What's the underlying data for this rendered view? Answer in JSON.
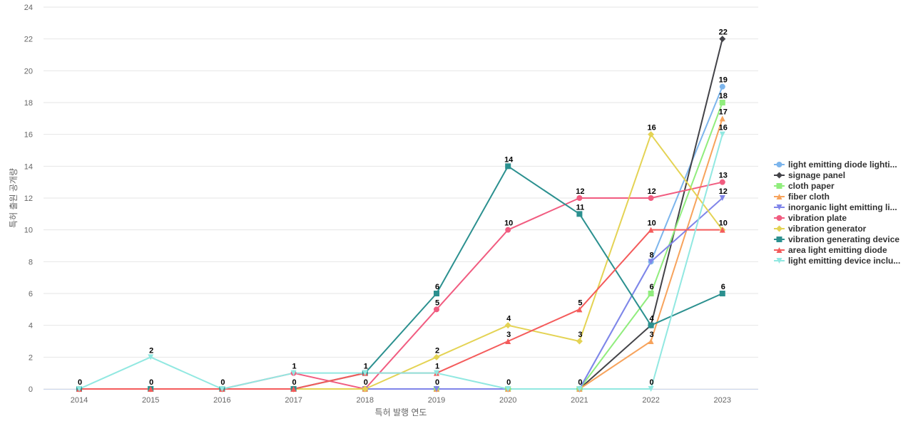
{
  "chart_data": {
    "type": "line",
    "title": "",
    "xlabel": "특허 발행 연도",
    "ylabel": "특허 출원 공개량",
    "ylim": [
      0,
      24
    ],
    "yticks": [
      0,
      2,
      4,
      6,
      8,
      10,
      12,
      14,
      16,
      18,
      20,
      22,
      24
    ],
    "x": [
      "2014",
      "2015",
      "2016",
      "2017",
      "2018",
      "2019",
      "2020",
      "2021",
      "2022",
      "2023"
    ],
    "grid": true,
    "legend_position": "right",
    "series": [
      {
        "name": "light emitting diode lighti...",
        "color": "#7cb5ec",
        "marker": "circle",
        "values": [
          0,
          0,
          0,
          0,
          0,
          0,
          0,
          0,
          8,
          19
        ]
      },
      {
        "name": "signage panel",
        "color": "#434348",
        "marker": "diamond",
        "values": [
          0,
          0,
          0,
          0,
          0,
          0,
          0,
          0,
          4,
          22
        ]
      },
      {
        "name": "cloth paper",
        "color": "#90ed7d",
        "marker": "square",
        "values": [
          0,
          0,
          0,
          0,
          0,
          0,
          0,
          0,
          6,
          18
        ]
      },
      {
        "name": "fiber cloth",
        "color": "#f7a35c",
        "marker": "triangle",
        "values": [
          0,
          0,
          0,
          0,
          0,
          0,
          0,
          0,
          3,
          17
        ]
      },
      {
        "name": "inorganic light emitting li...",
        "color": "#8085e9",
        "marker": "triangle-down",
        "values": [
          0,
          0,
          0,
          0,
          0,
          0,
          0,
          0,
          8,
          12
        ]
      },
      {
        "name": "vibration plate",
        "color": "#f15c80",
        "marker": "circle",
        "values": [
          0,
          0,
          0,
          1,
          0,
          5,
          10,
          12,
          12,
          13
        ]
      },
      {
        "name": "vibration generator",
        "color": "#e4d354",
        "marker": "diamond",
        "values": [
          0,
          0,
          0,
          0,
          0,
          2,
          4,
          3,
          16,
          10
        ]
      },
      {
        "name": "vibration generating device",
        "color": "#2b908f",
        "marker": "square",
        "values": [
          0,
          0,
          0,
          0,
          1,
          6,
          14,
          11,
          4,
          6
        ]
      },
      {
        "name": "area light emitting diode",
        "color": "#f45b5b",
        "marker": "triangle",
        "values": [
          0,
          0,
          0,
          0,
          1,
          1,
          3,
          5,
          10,
          10
        ]
      },
      {
        "name": "light emitting device inclu...",
        "color": "#91e8e1",
        "marker": "triangle-down",
        "values": [
          0,
          2,
          0,
          1,
          1,
          1,
          0,
          0,
          0,
          16
        ]
      }
    ],
    "data_labels": [
      {
        "x": "2014",
        "value": 0
      },
      {
        "x": "2015",
        "value": 2
      },
      {
        "x": "2015",
        "value": 0
      },
      {
        "x": "2016",
        "value": 0
      },
      {
        "x": "2017",
        "value": 1
      },
      {
        "x": "2017",
        "value": 0
      },
      {
        "x": "2018",
        "value": 1
      },
      {
        "x": "2018",
        "value": 0
      },
      {
        "x": "2019",
        "value": 6
      },
      {
        "x": "2019",
        "value": 5
      },
      {
        "x": "2019",
        "value": 2
      },
      {
        "x": "2019",
        "value": 1
      },
      {
        "x": "2019",
        "value": 0
      },
      {
        "x": "2020",
        "value": 14
      },
      {
        "x": "2020",
        "value": 10
      },
      {
        "x": "2020",
        "value": 4
      },
      {
        "x": "2020",
        "value": 3
      },
      {
        "x": "2020",
        "value": 0
      },
      {
        "x": "2021",
        "value": 12
      },
      {
        "x": "2021",
        "value": 11
      },
      {
        "x": "2021",
        "value": 5
      },
      {
        "x": "2021",
        "value": 3
      },
      {
        "x": "2021",
        "value": 0
      },
      {
        "x": "2022",
        "value": 16
      },
      {
        "x": "2022",
        "value": 12
      },
      {
        "x": "2022",
        "value": 10
      },
      {
        "x": "2022",
        "value": 8
      },
      {
        "x": "2022",
        "value": 6
      },
      {
        "x": "2022",
        "value": 4
      },
      {
        "x": "2022",
        "value": 3
      },
      {
        "x": "2022",
        "value": 0
      },
      {
        "x": "2023",
        "value": 22
      },
      {
        "x": "2023",
        "value": 19
      },
      {
        "x": "2023",
        "value": 18
      },
      {
        "x": "2023",
        "value": 17
      },
      {
        "x": "2023",
        "value": 16
      },
      {
        "x": "2023",
        "value": 13
      },
      {
        "x": "2023",
        "value": 12
      },
      {
        "x": "2023",
        "value": 10
      },
      {
        "x": "2023",
        "value": 6
      }
    ]
  }
}
